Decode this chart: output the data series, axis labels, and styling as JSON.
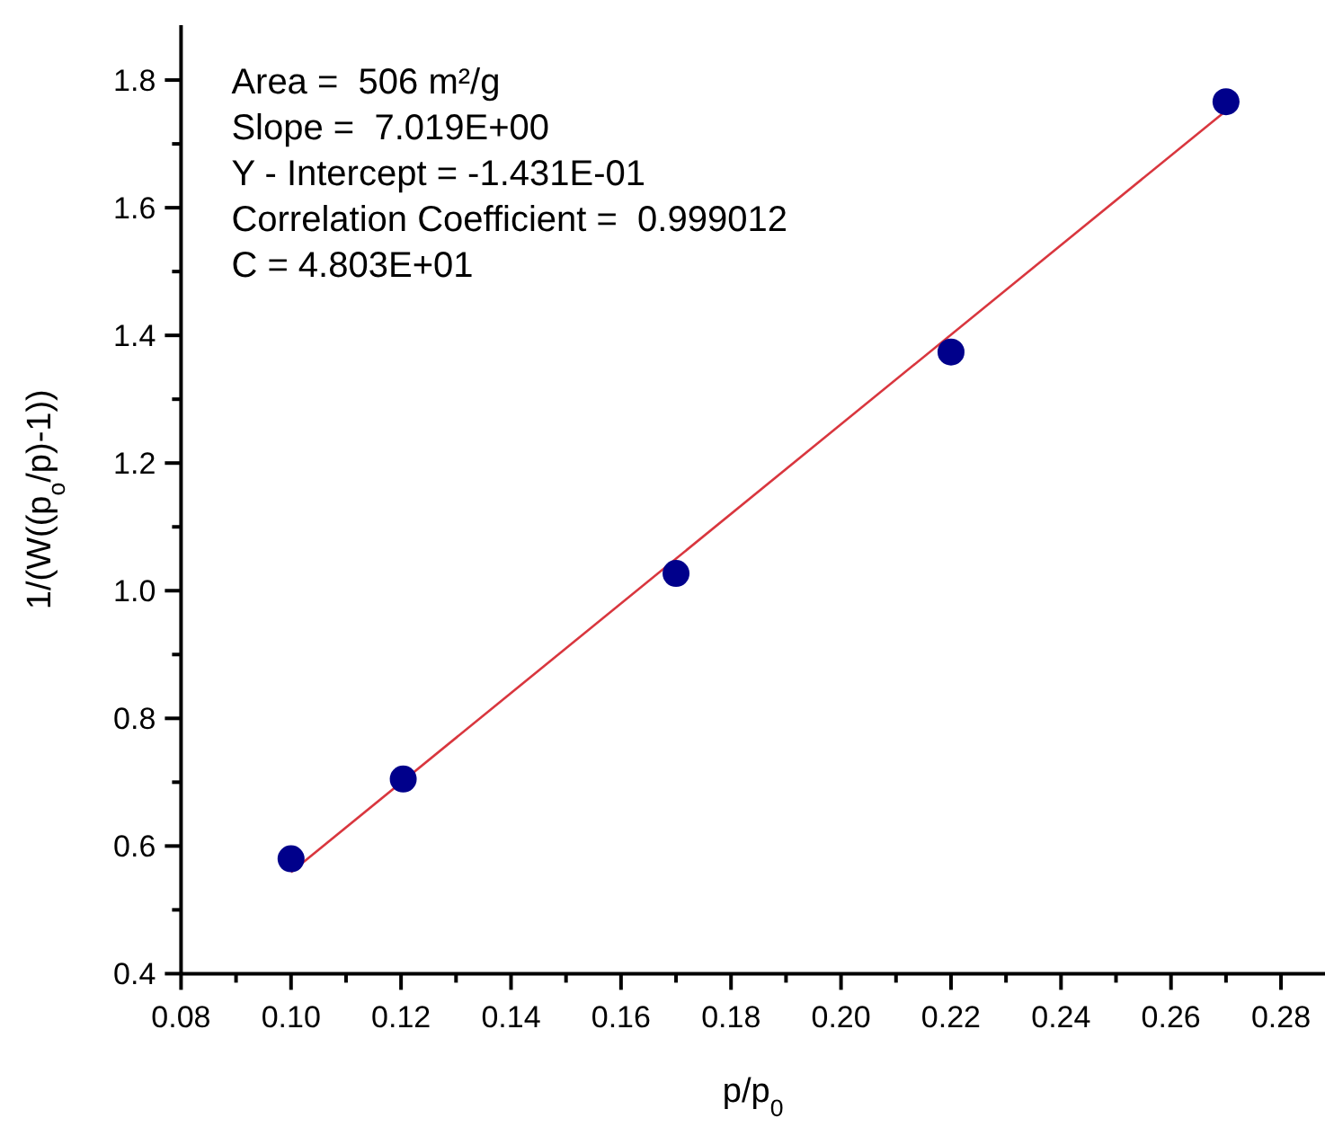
{
  "chart_data": {
    "type": "scatter",
    "xlabel": "p/p$_{0}$",
    "ylabel": "1/(W((p$_{o}$/p)-1))",
    "annotations": [
      "Area =  506 m²/g",
      "Slope =  7.019E+00",
      "Y - Intercept = -1.431E-01",
      "Correlation Coefficient =  0.999012",
      "C = 4.803E+01"
    ],
    "xlim": [
      0.08,
      0.288
    ],
    "ylim": [
      0.4,
      1.886
    ],
    "xticks": [
      0.08,
      {
        "value": 0.09,
        "label": null
      },
      "0.10",
      {
        "value": 0.11,
        "label": null
      },
      0.12,
      {
        "value": 0.13,
        "label": null
      },
      0.14,
      {
        "value": 0.15,
        "label": null
      },
      0.16,
      {
        "value": 0.17,
        "label": null
      },
      0.18,
      {
        "value": 0.19,
        "label": null
      },
      "0.20",
      {
        "value": 0.21,
        "label": null
      },
      0.22,
      {
        "value": 0.23,
        "label": null
      },
      0.24,
      {
        "value": 0.25,
        "label": null
      },
      0.26,
      {
        "value": 0.27,
        "label": null
      },
      0.28
    ],
    "yticks": [
      0.4,
      {
        "value": 0.5,
        "label": null
      },
      0.6,
      {
        "value": 0.7,
        "label": null
      },
      0.8,
      {
        "value": 0.9,
        "label": null
      },
      "1.0",
      {
        "value": 1.1,
        "label": null
      },
      1.2,
      {
        "value": 1.3,
        "label": null
      },
      1.4,
      {
        "value": 1.5,
        "label": null
      },
      1.6,
      {
        "value": 1.7,
        "label": null
      },
      1.8
    ],
    "marker": "circle",
    "series": [
      {
        "color": "#00008b",
        "x": [
          0.1,
          0.1204,
          0.17,
          0.22,
          0.27
        ],
        "values": [
          0.58,
          0.705,
          1.027,
          1.374,
          1.766
        ]
      },
      {
        "type": "line",
        "color": "#d9363e",
        "x": [
          0.1,
          0.27
        ],
        "values": [
          0.559,
          1.752
        ],
        "marker": "none"
      }
    ]
  }
}
